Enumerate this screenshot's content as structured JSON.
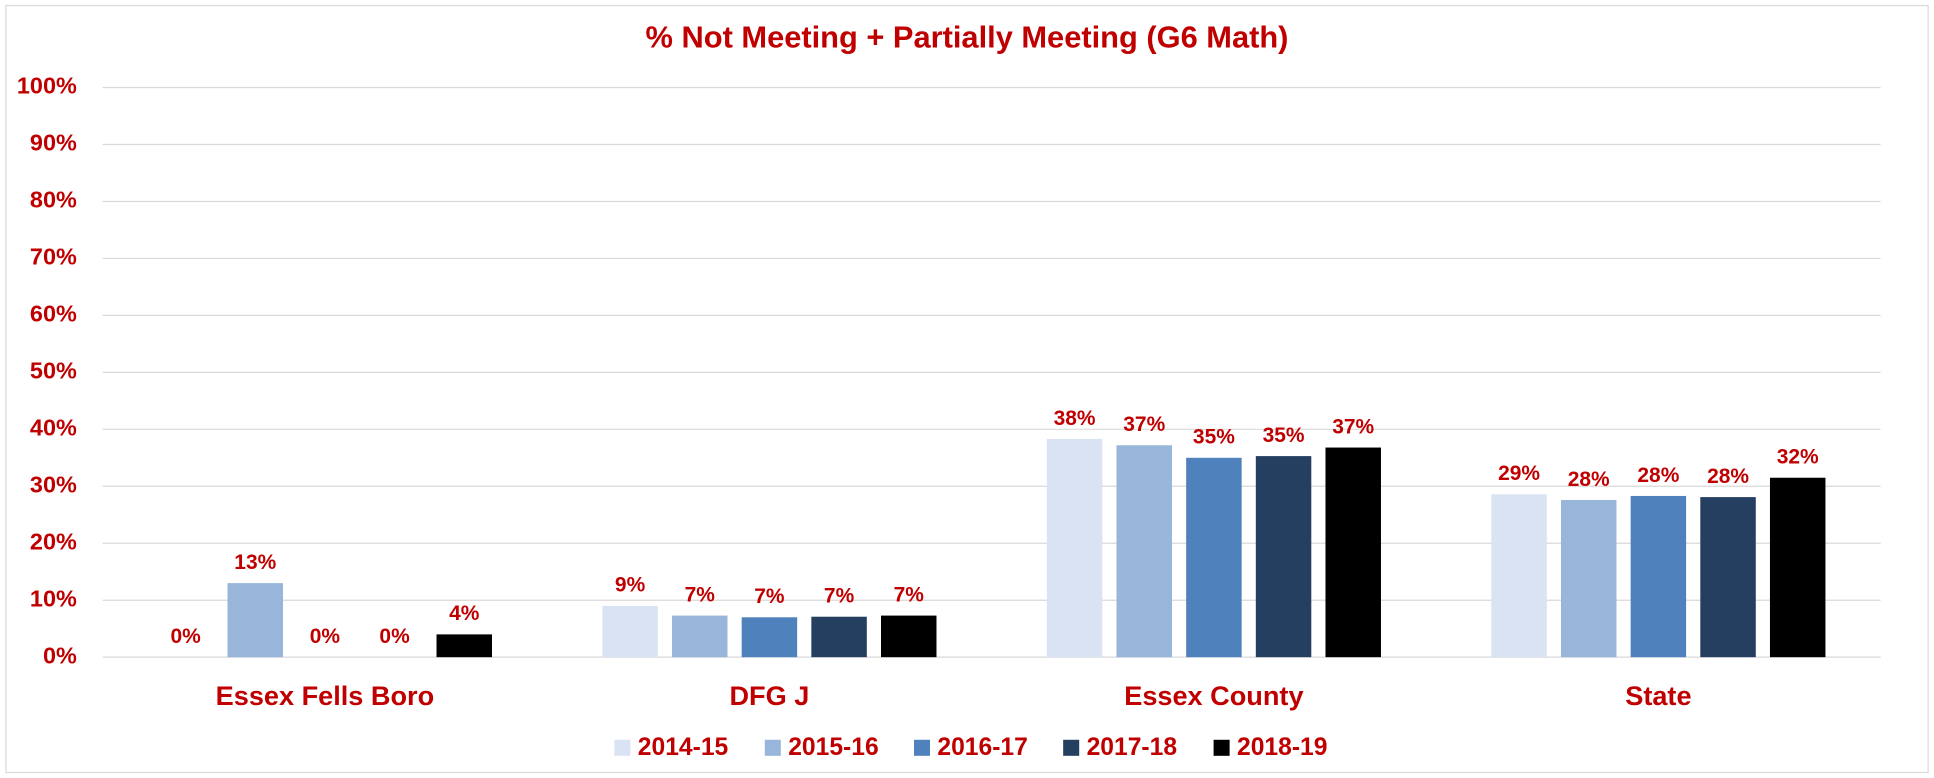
{
  "chart_data": {
    "type": "bar",
    "title": "% Not Meeting + Partially Meeting (G6 Math)",
    "categories": [
      "Essex Fells Boro",
      "DFG J",
      "Essex County",
      "State"
    ],
    "series": [
      {
        "name": "2014-15",
        "color": "#dae3f3",
        "values": [
          0,
          9,
          38.3,
          28.6
        ],
        "value_labels": [
          "0%",
          "9%",
          "38%",
          "29%"
        ]
      },
      {
        "name": "2015-16",
        "color": "#97b6da",
        "values": [
          13,
          7.3,
          37.2,
          27.6
        ],
        "value_labels": [
          "13%",
          "7%",
          "37%",
          "28%"
        ]
      },
      {
        "name": "2016-17",
        "color": "#4f81bd",
        "values": [
          0,
          7,
          35,
          28.3
        ],
        "value_labels": [
          "0%",
          "7%",
          "35%",
          "28%"
        ]
      },
      {
        "name": "2017-18",
        "color": "#243f60",
        "values": [
          0,
          7.1,
          35.3,
          28.1
        ],
        "value_labels": [
          "0%",
          "7%",
          "35%",
          "28%"
        ]
      },
      {
        "name": "2018-19",
        "color": "#000000",
        "values": [
          4,
          7.3,
          36.8,
          31.5
        ],
        "value_labels": [
          "4%",
          "7%",
          "37%",
          "32%"
        ]
      }
    ],
    "ylim": [
      0,
      100
    ],
    "yticks": [
      {
        "value": 0,
        "label": "0%"
      },
      {
        "value": 10,
        "label": "10%"
      },
      {
        "value": 20,
        "label": "20%"
      },
      {
        "value": 30,
        "label": "30%"
      },
      {
        "value": 40,
        "label": "40%"
      },
      {
        "value": 50,
        "label": "50%"
      },
      {
        "value": 60,
        "label": "60%"
      },
      {
        "value": 70,
        "label": "70%"
      },
      {
        "value": 80,
        "label": "80%"
      },
      {
        "value": 90,
        "label": "90%"
      },
      {
        "value": 100,
        "label": "100%"
      }
    ],
    "grid": true,
    "legend": "bottom"
  }
}
